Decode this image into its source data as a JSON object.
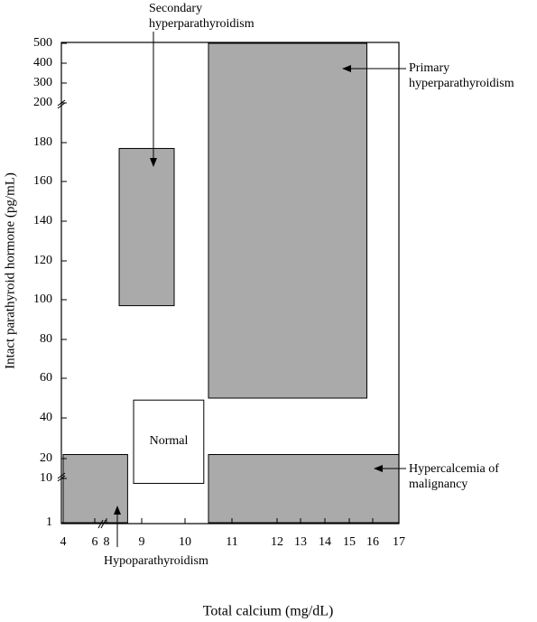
{
  "chart_data": {
    "type": "region",
    "xlabel": "Total calcium (mg/dL)",
    "ylabel": "Intact parathyroid hormone (pg/mL)",
    "xlim": [
      4,
      17
    ],
    "ylim": [
      1,
      500
    ],
    "xticks": [
      4,
      6,
      8,
      9,
      10,
      11,
      12,
      13,
      14,
      15,
      16,
      17
    ],
    "yticks": [
      1,
      10,
      20,
      40,
      60,
      80,
      100,
      120,
      140,
      160,
      180,
      200,
      300,
      400,
      500
    ],
    "regions": [
      {
        "name": "Secondary hyperparathyroidism",
        "color": "#aaaaaa",
        "x": [
          8.36,
          9.75
        ],
        "y": [
          97,
          177
        ]
      },
      {
        "name": "Primary hyperparathyroidism",
        "color": "#aaaaaa",
        "x": [
          10.5,
          15.75
        ],
        "y": [
          50,
          500
        ]
      },
      {
        "name": "Normal",
        "color": "#ffffff",
        "x": [
          8.77,
          10.4
        ],
        "y": [
          9,
          49
        ]
      },
      {
        "name": "Hypercalcemia of malignancy",
        "color": "#aaaaaa",
        "x": [
          10.5,
          17
        ],
        "y": [
          1,
          22
        ]
      },
      {
        "name": "Hypoparathyroidism",
        "color": "#aaaaaa",
        "x": [
          4,
          8.6
        ],
        "y": [
          1,
          22
        ]
      }
    ]
  }
}
